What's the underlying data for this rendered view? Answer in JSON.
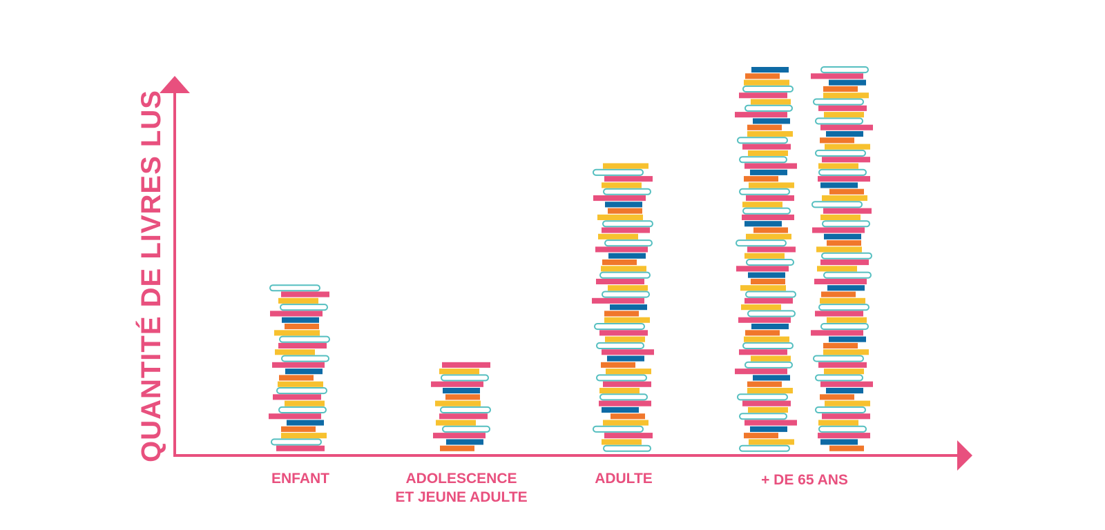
{
  "chart_data": {
    "type": "bar",
    "title": "",
    "ylabel": "QUANTITÉ DE LIVRES LUS",
    "xlabel": "",
    "categories": [
      [
        "ENFANT"
      ],
      [
        "ADOLESCENCE",
        "ET JEUNE ADULTE"
      ],
      [
        "ADULTE"
      ],
      [
        "+ DE 65 ANS"
      ]
    ],
    "values": [
      26,
      14,
      45,
      60
    ],
    "ylim": [
      0,
      60
    ],
    "grid": false,
    "legend": "none",
    "stacks_per_category": [
      1,
      1,
      1,
      2
    ],
    "stack_heights_books": [
      26,
      14,
      45,
      60
    ]
  },
  "colors": {
    "axis": "#e8507e",
    "label": "#e8507e",
    "book_pink": "#e8507e",
    "book_yellow": "#f7c12f",
    "book_orange": "#f0772b",
    "book_blue": "#0e6aa5",
    "book_teal": "#55bfc0"
  }
}
